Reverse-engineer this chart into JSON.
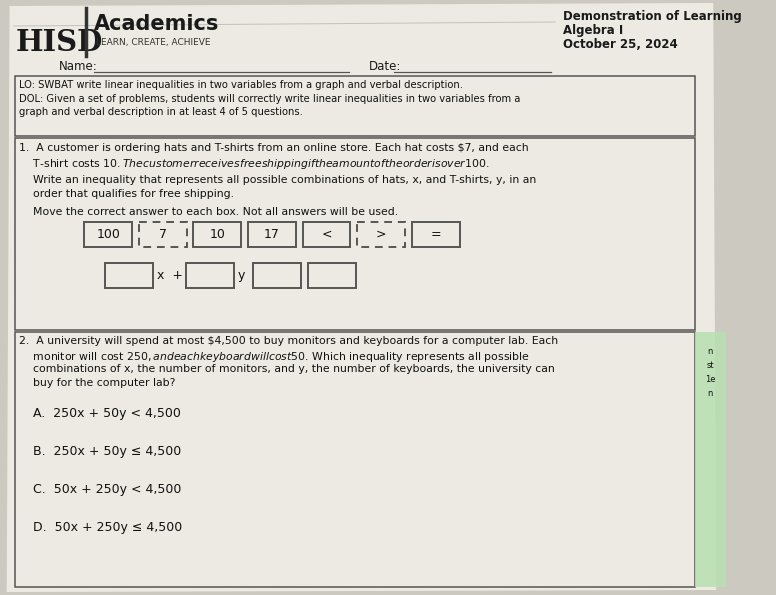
{
  "bg_color": "#ccc9c0",
  "paper_color": "#eceae2",
  "header_hisd": "HISD",
  "header_academics": "Academics",
  "header_tagline": "LEARN, CREATE, ACHIEVE",
  "header_right_line1": "Demonstration of Learning",
  "header_right_line2": "Algebra I",
  "header_right_line3": "October 25, 2024",
  "name_label": "Name:",
  "date_label": "Date:",
  "lo_text": "LO: SWBAT write linear inequalities in two variables from a graph and verbal description.",
  "dol_line1": "DOL: Given a set of problems, students will correctly write linear inequalities in two variables from a",
  "dol_line2": "graph and verbal description in at least 4 of 5 questions.",
  "q1_line1": "1.  A customer is ordering hats and T-shirts from an online store. Each hat costs $7, and each",
  "q1_line2": "    T-shirt costs $10. The customer receives free shipping if the amount of the order is over $100.",
  "q1_write1": "Write an inequality that represents all possible combinations of hats, x, and T-shirts, y, in an",
  "q1_write2": "order that qualifies for free shipping.",
  "q1_move": "Move the correct answer to each box. Not all answers will be used.",
  "answer_boxes": [
    "100",
    "7",
    "10",
    "17",
    "<",
    ">",
    "="
  ],
  "answer_box_dashed": [
    false,
    true,
    false,
    false,
    false,
    true,
    false
  ],
  "q2_line1": "2.  A university will spend at most $4,500 to buy monitors and keyboards for a computer lab. Each",
  "q2_line2": "    monitor will cost $250, and each keyboard will cost $50. Which inequality represents all possible",
  "q2_line3": "    combinations of x, the number of monitors, and y, the number of keyboards, the university can",
  "q2_line4": "    buy for the computer lab?",
  "q2_optA": "A.  250x + 50y < 4,500",
  "q2_optB": "B.  250x + 50y ≤ 4,500",
  "q2_optC": "C.  50x + 250y < 4,500",
  "q2_optD": "D.  50x + 250y ≤ 4,500",
  "sidebar_lines": [
    "n",
    "st",
    "1e",
    "n"
  ],
  "sidebar_color": "#b8e0b0"
}
